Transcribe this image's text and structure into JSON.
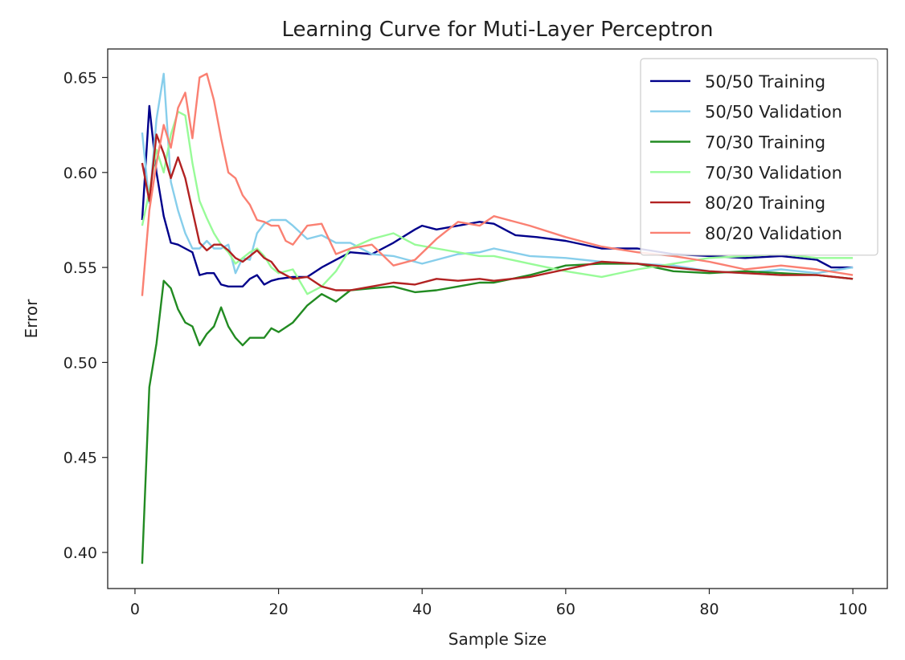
{
  "chart_data": {
    "type": "line",
    "title": "Learning Curve for Muti-Layer Perceptron",
    "xlabel": "Sample Size",
    "ylabel": "Error",
    "xlim": [
      -3.8,
      104.8
    ],
    "ylim": [
      0.381,
      0.665
    ],
    "xticks": [
      0,
      20,
      40,
      60,
      80,
      100
    ],
    "yticks": [
      0.4,
      0.45,
      0.5,
      0.55,
      0.6,
      0.65
    ],
    "xtick_labels": [
      "0",
      "20",
      "40",
      "60",
      "80",
      "100"
    ],
    "ytick_labels": [
      "0.40",
      "0.45",
      "0.50",
      "0.55",
      "0.60",
      "0.65"
    ],
    "grid": false,
    "legend_position": "top-right",
    "series": [
      {
        "name": "50/50 Training",
        "color": "#00008b",
        "x": [
          1,
          2,
          3,
          4,
          5,
          6,
          7,
          8,
          9,
          10,
          11,
          12,
          13,
          14,
          15,
          16,
          17,
          18,
          19,
          20,
          22,
          24,
          26,
          28,
          30,
          33,
          36,
          39,
          40,
          42,
          45,
          48,
          50,
          53,
          56,
          60,
          65,
          70,
          75,
          80,
          85,
          90,
          95,
          97,
          100
        ],
        "y": [
          0.575,
          0.635,
          0.6,
          0.577,
          0.563,
          0.562,
          0.56,
          0.558,
          0.546,
          0.547,
          0.547,
          0.541,
          0.54,
          0.54,
          0.54,
          0.544,
          0.546,
          0.541,
          0.543,
          0.544,
          0.545,
          0.545,
          0.55,
          0.554,
          0.558,
          0.557,
          0.563,
          0.57,
          0.572,
          0.57,
          0.572,
          0.574,
          0.573,
          0.567,
          0.566,
          0.564,
          0.56,
          0.56,
          0.557,
          0.556,
          0.555,
          0.556,
          0.554,
          0.55,
          0.55
        ]
      },
      {
        "name": "50/50 Validation",
        "color": "#87ceeb",
        "x": [
          1,
          2,
          3,
          4,
          5,
          6,
          7,
          8,
          9,
          10,
          11,
          12,
          13,
          14,
          15,
          16,
          17,
          18,
          19,
          20,
          21,
          22,
          24,
          26,
          28,
          30,
          33,
          36,
          39,
          40,
          42,
          45,
          48,
          50,
          55,
          60,
          65,
          70,
          75,
          80,
          85,
          90,
          95,
          100
        ],
        "y": [
          0.621,
          0.584,
          0.628,
          0.652,
          0.595,
          0.58,
          0.568,
          0.56,
          0.56,
          0.564,
          0.56,
          0.56,
          0.562,
          0.547,
          0.555,
          0.554,
          0.568,
          0.573,
          0.575,
          0.575,
          0.575,
          0.572,
          0.565,
          0.567,
          0.563,
          0.563,
          0.557,
          0.556,
          0.553,
          0.552,
          0.554,
          0.557,
          0.558,
          0.56,
          0.556,
          0.555,
          0.553,
          0.552,
          0.551,
          0.548,
          0.547,
          0.549,
          0.547,
          0.55
        ]
      },
      {
        "name": "70/30 Training",
        "color": "#228b22",
        "x": [
          1,
          2,
          3,
          4,
          5,
          6,
          7,
          8,
          9,
          10,
          11,
          12,
          13,
          14,
          15,
          16,
          17,
          18,
          19,
          20,
          22,
          24,
          26,
          28,
          30,
          33,
          36,
          39,
          42,
          45,
          48,
          50,
          55,
          60,
          65,
          70,
          75,
          80,
          85,
          90,
          95,
          100
        ],
        "y": [
          0.394,
          0.487,
          0.51,
          0.543,
          0.539,
          0.528,
          0.521,
          0.519,
          0.509,
          0.515,
          0.519,
          0.529,
          0.519,
          0.513,
          0.509,
          0.513,
          0.513,
          0.513,
          0.518,
          0.516,
          0.521,
          0.53,
          0.536,
          0.532,
          0.538,
          0.539,
          0.54,
          0.537,
          0.538,
          0.54,
          0.542,
          0.542,
          0.546,
          0.551,
          0.552,
          0.552,
          0.548,
          0.547,
          0.548,
          0.547,
          0.546,
          0.544
        ]
      },
      {
        "name": "70/30 Validation",
        "color": "#98fb98",
        "x": [
          1,
          2,
          3,
          4,
          5,
          6,
          7,
          8,
          9,
          10,
          11,
          12,
          13,
          14,
          15,
          16,
          17,
          18,
          19,
          20,
          22,
          24,
          26,
          28,
          30,
          33,
          36,
          39,
          42,
          45,
          48,
          50,
          55,
          60,
          65,
          70,
          75,
          80,
          85,
          90,
          95,
          100
        ],
        "y": [
          0.572,
          0.59,
          0.612,
          0.6,
          0.62,
          0.632,
          0.63,
          0.605,
          0.585,
          0.576,
          0.568,
          0.562,
          0.558,
          0.552,
          0.555,
          0.558,
          0.56,
          0.556,
          0.55,
          0.547,
          0.549,
          0.536,
          0.54,
          0.548,
          0.56,
          0.565,
          0.568,
          0.562,
          0.56,
          0.558,
          0.556,
          0.556,
          0.552,
          0.548,
          0.545,
          0.549,
          0.552,
          0.555,
          0.556,
          0.557,
          0.555,
          0.555
        ]
      },
      {
        "name": "80/20 Training",
        "color": "#b22222",
        "x": [
          1,
          2,
          3,
          4,
          5,
          6,
          7,
          8,
          9,
          10,
          11,
          12,
          13,
          14,
          15,
          16,
          17,
          18,
          19,
          20,
          22,
          24,
          26,
          28,
          30,
          33,
          36,
          39,
          42,
          45,
          48,
          50,
          55,
          60,
          65,
          70,
          75,
          80,
          85,
          90,
          95,
          100
        ],
        "y": [
          0.605,
          0.585,
          0.62,
          0.61,
          0.597,
          0.608,
          0.597,
          0.58,
          0.563,
          0.559,
          0.562,
          0.562,
          0.559,
          0.555,
          0.553,
          0.556,
          0.559,
          0.555,
          0.553,
          0.548,
          0.544,
          0.545,
          0.54,
          0.538,
          0.538,
          0.54,
          0.542,
          0.541,
          0.544,
          0.543,
          0.544,
          0.543,
          0.545,
          0.549,
          0.553,
          0.552,
          0.55,
          0.548,
          0.547,
          0.546,
          0.546,
          0.544
        ]
      },
      {
        "name": "80/20 Validation",
        "color": "#fa8072",
        "x": [
          1,
          2,
          3,
          4,
          5,
          6,
          7,
          8,
          9,
          10,
          11,
          12,
          13,
          14,
          15,
          16,
          17,
          18,
          19,
          20,
          21,
          22,
          24,
          26,
          28,
          30,
          33,
          36,
          39,
          42,
          45,
          48,
          50,
          52,
          55,
          60,
          65,
          70,
          75,
          80,
          85,
          90,
          95,
          100
        ],
        "y": [
          0.535,
          0.58,
          0.605,
          0.625,
          0.613,
          0.634,
          0.642,
          0.618,
          0.65,
          0.652,
          0.638,
          0.618,
          0.6,
          0.597,
          0.588,
          0.583,
          0.575,
          0.574,
          0.572,
          0.572,
          0.564,
          0.562,
          0.572,
          0.573,
          0.557,
          0.56,
          0.562,
          0.551,
          0.554,
          0.565,
          0.574,
          0.572,
          0.577,
          0.575,
          0.572,
          0.566,
          0.561,
          0.558,
          0.556,
          0.553,
          0.549,
          0.551,
          0.549,
          0.546
        ]
      }
    ]
  }
}
